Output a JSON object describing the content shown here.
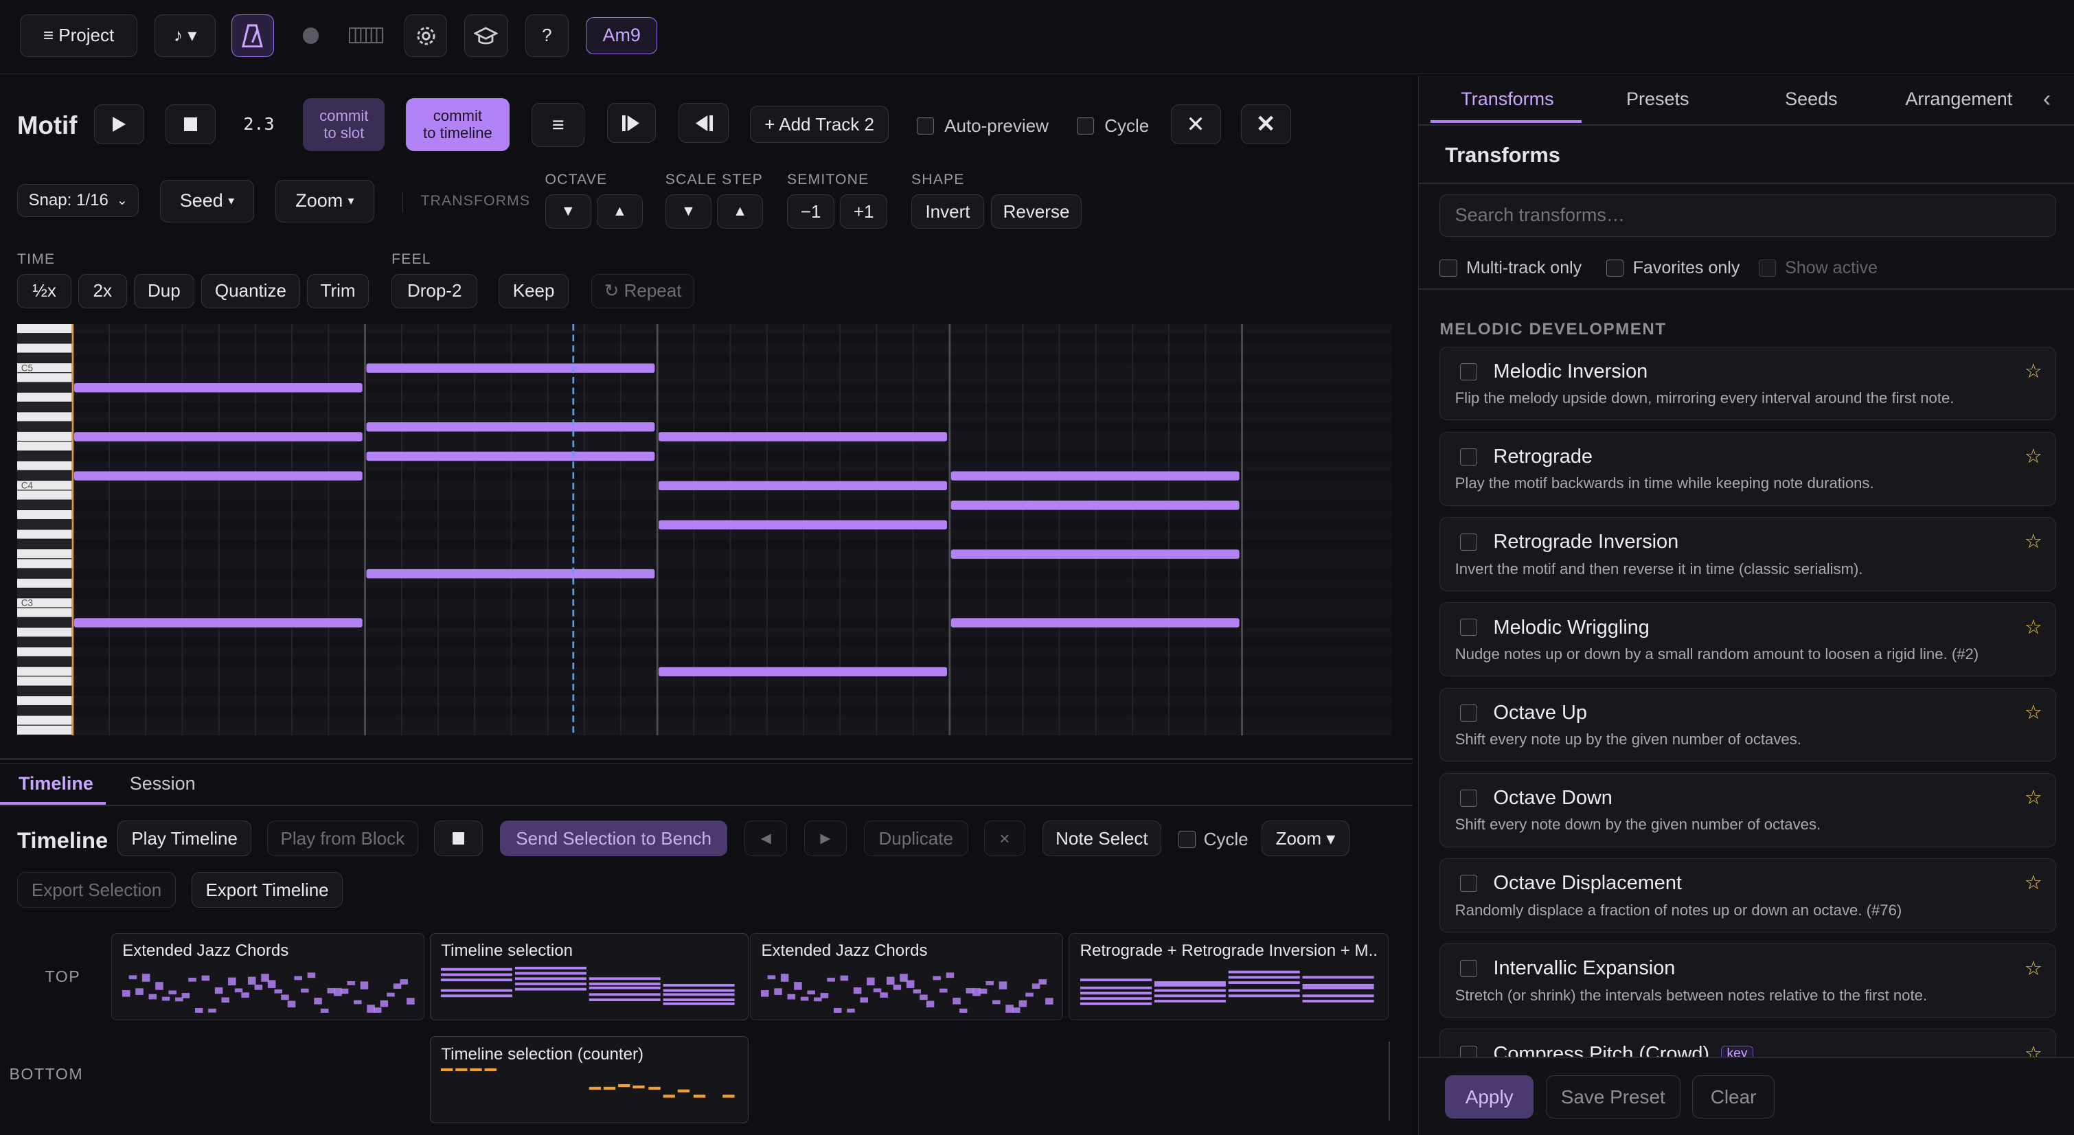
{
  "toolbar": {
    "project_label": "≡ Project",
    "note_menu_label": "♪ ▾",
    "help_label": "?",
    "chord_label": "Am9"
  },
  "motif": {
    "title": "Motif",
    "position": "2.3",
    "commit_slot_line1": "commit",
    "commit_slot_line2": "to slot",
    "commit_timeline_line1": "commit",
    "commit_timeline_line2": "to timeline",
    "add_track_label": "+ Add Track 2",
    "auto_preview_label": "Auto-preview",
    "cycle_label": "Cycle",
    "snap_label": "Snap: 1/16",
    "seed_label": "Seed",
    "zoom_label": "Zoom",
    "transforms_label": "TRANSFORMS",
    "octave_label": "OCTAVE",
    "scale_step_label": "SCALE STEP",
    "semitone_label": "SEMITONE",
    "shape_label": "SHAPE",
    "semitone_down": "−1",
    "semitone_up": "+1",
    "invert_label": "Invert",
    "reverse_label": "Reverse",
    "time_label": "TIME",
    "feel_label": "FEEL",
    "half_label": "½x",
    "double_label": "2x",
    "dup_label": "Dup",
    "quantize_label": "Quantize",
    "trim_label": "Trim",
    "drop2_label": "Drop-2",
    "keep_label": "Keep",
    "repeat_label": "↻ Repeat",
    "key_labels": [
      "C5",
      "C4",
      "C3"
    ]
  },
  "piano_roll": {
    "accent_color": "#b383f5",
    "playhead_color": "#5aa0f0",
    "total_beats": 16,
    "notes": [
      {
        "pitch": 70,
        "start": 0,
        "len": 4
      },
      {
        "pitch": 65,
        "start": 0,
        "len": 4
      },
      {
        "pitch": 61,
        "start": 0,
        "len": 4
      },
      {
        "pitch": 46,
        "start": 0,
        "len": 4
      },
      {
        "pitch": 72,
        "start": 4,
        "len": 4
      },
      {
        "pitch": 66,
        "start": 4,
        "len": 4
      },
      {
        "pitch": 63,
        "start": 4,
        "len": 4
      },
      {
        "pitch": 51,
        "start": 4,
        "len": 4
      },
      {
        "pitch": 65,
        "start": 8,
        "len": 4
      },
      {
        "pitch": 60,
        "start": 8,
        "len": 4
      },
      {
        "pitch": 56,
        "start": 8,
        "len": 4
      },
      {
        "pitch": 41,
        "start": 8,
        "len": 4
      },
      {
        "pitch": 61,
        "start": 12,
        "len": 4
      },
      {
        "pitch": 58,
        "start": 12,
        "len": 4
      },
      {
        "pitch": 53,
        "start": 12,
        "len": 4
      },
      {
        "pitch": 46,
        "start": 12,
        "len": 4
      }
    ],
    "playhead_beat": 6.85
  },
  "timeline": {
    "tab_timeline": "Timeline",
    "tab_session": "Session",
    "title": "Timeline",
    "play_label": "Play Timeline",
    "play_block_label": "Play from Block",
    "send_label": "Send Selection to Bench",
    "duplicate_label": "Duplicate",
    "remove_label": "×",
    "note_select_label": "Note Select",
    "cycle_label": "Cycle",
    "zoom_label": "Zoom ▾",
    "export_sel_label": "Export Selection",
    "export_tl_label": "Export Timeline",
    "lane_top": "TOP",
    "lane_bottom": "BOTTOM",
    "blocks_top": [
      "Extended Jazz Chords",
      "Timeline selection",
      "Extended Jazz Chords",
      "Retrograde + Retrograde Inversion + M..."
    ],
    "block_bottom": "Timeline selection (counter)",
    "counter_color": "#f0a030"
  },
  "panel": {
    "tabs": [
      "Transforms",
      "Presets",
      "Seeds",
      "Arrangement"
    ],
    "collapse_label": "‹",
    "title": "Transforms",
    "search_placeholder": "Search transforms…",
    "filters": [
      "Multi-track only",
      "Favorites only",
      "Show active"
    ],
    "section_label": "MELODIC DEVELOPMENT",
    "items": [
      {
        "title": "Melodic Inversion",
        "desc": "Flip the melody upside down, mirroring every interval around the first note."
      },
      {
        "title": "Retrograde",
        "desc": "Play the motif backwards in time while keeping note durations."
      },
      {
        "title": "Retrograde Inversion",
        "desc": "Invert the motif and then reverse it in time (classic serialism)."
      },
      {
        "title": "Melodic Wriggling",
        "desc": "Nudge notes up or down by a small random amount to loosen a rigid line. (#2)"
      },
      {
        "title": "Octave Up",
        "desc": "Shift every note up by the given number of octaves."
      },
      {
        "title": "Octave Down",
        "desc": "Shift every note down by the given number of octaves."
      },
      {
        "title": "Octave Displacement",
        "desc": "Randomly displace a fraction of notes up or down an octave. (#76)"
      },
      {
        "title": "Intervallic Expansion",
        "desc": "Stretch (or shrink) the intervals between notes relative to the first note."
      },
      {
        "title": "Compress Pitch (Crowd)",
        "desc": ""
      }
    ],
    "key_badge": "key",
    "apply_label": "Apply",
    "save_preset_label": "Save Preset",
    "clear_label": "Clear"
  }
}
